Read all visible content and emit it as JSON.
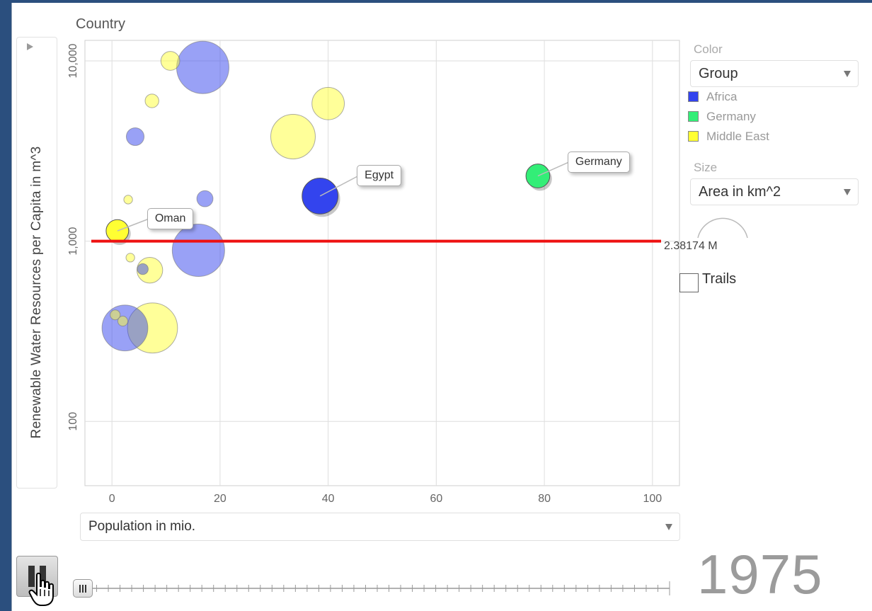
{
  "country_label": "Country",
  "year": "1975",
  "y_axis_label": "Renewable Water Resources per Capita in m^3",
  "x_axis_select": "Population in mio.",
  "sidebar": {
    "color_heading": "Color",
    "color_select": "Group",
    "size_heading": "Size",
    "size_select": "Area in km^2",
    "size_value": "2.38174 M",
    "trails_label": "Trails"
  },
  "legend": [
    {
      "name": "Africa",
      "color": "#3344ee"
    },
    {
      "name": "Germany",
      "color": "#33ee77"
    },
    {
      "name": "Middle East",
      "color": "#ffff33"
    }
  ],
  "chart_data": {
    "type": "scatter",
    "x_label": "Population in mio.",
    "y_label": "Renewable Water Resources per Capita in m^3",
    "y_scale": "log",
    "xlim": [
      -5,
      105
    ],
    "ylim": [
      44,
      13000
    ],
    "x_ticks": [
      "0",
      "20",
      "40",
      "60",
      "80",
      "100"
    ],
    "y_ticks": [
      "100",
      "1,000",
      "10,000"
    ],
    "grid": true,
    "reference_line_y": 1000,
    "labeled_points": [
      {
        "label": "Oman",
        "x": 1,
        "y": 1140
      },
      {
        "label": "Egypt",
        "x": 38.5,
        "y": 1780
      },
      {
        "label": "Germany",
        "x": 78.8,
        "y": 2300
      }
    ],
    "points": [
      {
        "group": "Africa",
        "x": 16.8,
        "y": 9200,
        "size": 2.38,
        "highlight": false
      },
      {
        "group": "Africa",
        "x": 4.3,
        "y": 3800,
        "size": 0.16,
        "highlight": false
      },
      {
        "group": "Africa",
        "x": 17.2,
        "y": 1720,
        "size": 0.12,
        "highlight": false
      },
      {
        "group": "Africa",
        "x": 38.5,
        "y": 1780,
        "size": 1.0,
        "highlight": true
      },
      {
        "group": "Africa",
        "x": 16.0,
        "y": 890,
        "size": 2.38,
        "highlight": false
      },
      {
        "group": "Africa",
        "x": 5.7,
        "y": 700,
        "size": 0.03,
        "highlight": false
      },
      {
        "group": "Africa",
        "x": 2.4,
        "y": 330,
        "size": 1.76,
        "highlight": false
      },
      {
        "group": "Germany",
        "x": 78.8,
        "y": 2300,
        "size": 0.36,
        "highlight": true
      },
      {
        "group": "Middle East",
        "x": 10.8,
        "y": 10000,
        "size": 0.19,
        "highlight": false
      },
      {
        "group": "Middle East",
        "x": 7.4,
        "y": 6000,
        "size": 0.07,
        "highlight": false
      },
      {
        "group": "Middle East",
        "x": 40.0,
        "y": 5800,
        "size": 0.78,
        "highlight": false
      },
      {
        "group": "Middle East",
        "x": 33.5,
        "y": 3800,
        "size": 1.65,
        "highlight": false
      },
      {
        "group": "Middle East",
        "x": 3.0,
        "y": 1700,
        "size": 0.01,
        "highlight": false
      },
      {
        "group": "Middle East",
        "x": 1.0,
        "y": 1140,
        "size": 0.31,
        "highlight": true
      },
      {
        "group": "Middle East",
        "x": 3.4,
        "y": 810,
        "size": 0.01,
        "highlight": false
      },
      {
        "group": "Middle East",
        "x": 7.0,
        "y": 690,
        "size": 0.44,
        "highlight": false
      },
      {
        "group": "Middle East",
        "x": 7.5,
        "y": 330,
        "size": 2.15,
        "highlight": false
      },
      {
        "group": "Middle East",
        "x": 0.6,
        "y": 390,
        "size": 0.02,
        "highlight": false
      },
      {
        "group": "Middle East",
        "x": 2.0,
        "y": 360,
        "size": 0.02,
        "highlight": false
      }
    ]
  }
}
